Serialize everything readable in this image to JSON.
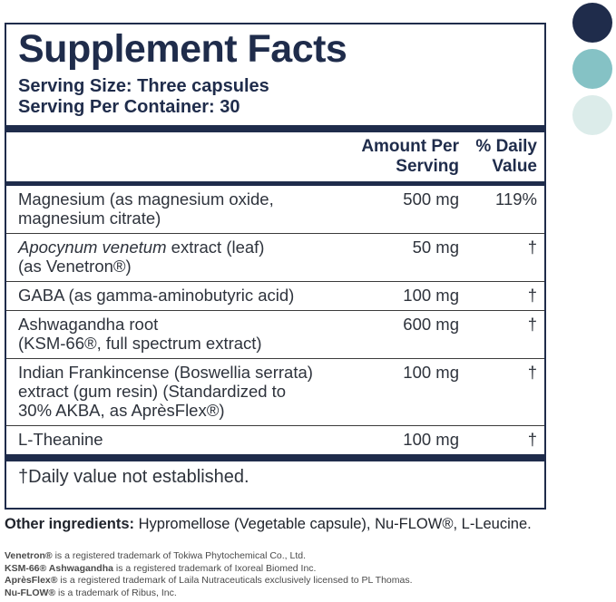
{
  "title": "Supplement Facts",
  "serving": {
    "size": "Serving Size: Three capsules",
    "per_container": "Serving Per Container: 30"
  },
  "table": {
    "amount_header": "Amount Per\nServing",
    "dv_header": "% Daily\nValue",
    "rows": [
      {
        "name": "Magnesium (as magnesium oxide,\nmagnesium citrate)",
        "amount": "500 mg",
        "dv": "119%"
      },
      {
        "name_italic": "Apocynum venetum",
        "name_rest": " extract (leaf)\n(as Venetron®)",
        "amount": "50 mg",
        "dv": "†"
      },
      {
        "name": "GABA (as gamma-aminobutyric acid)",
        "amount": "100 mg",
        "dv": "†"
      },
      {
        "name": "Ashwagandha root\n(KSM-66®, full spectrum extract)",
        "amount": "600 mg",
        "dv": "†"
      },
      {
        "name": "Indian Frankincense (Boswellia serrata)\nextract (gum resin) (Standardized to\n30% AKBA, as AprèsFlex®)",
        "amount": "100 mg",
        "dv": "†"
      },
      {
        "name": "L-Theanine",
        "amount": "100 mg",
        "dv": "†"
      }
    ],
    "footnote": "†Daily value not established."
  },
  "other_ingredients": {
    "label": "Other ingredients:",
    "text": " Hypromellose (Vegetable capsule), Nu-FLOW®, L-Leucine."
  },
  "trademarks": [
    {
      "brand": "Venetron®",
      "text": " is a registered trademark of Tokiwa Phytochemical Co., Ltd."
    },
    {
      "brand": "KSM-66® Ashwagandha",
      "text": " is a registered trademark of Ixoreal Biomed Inc."
    },
    {
      "brand": "AprèsFlex®",
      "text": " is a registered trademark of Laila Nutraceuticals exclusively licensed to PL Thomas."
    },
    {
      "brand": "Nu-FLOW®",
      "text": " is a trademark of Ribus, Inc."
    }
  ],
  "colors": {
    "navy": "#1f2c4b",
    "teal": "#85c2c5",
    "pale_teal": "#dcecea",
    "body_text": "#2e333c"
  }
}
